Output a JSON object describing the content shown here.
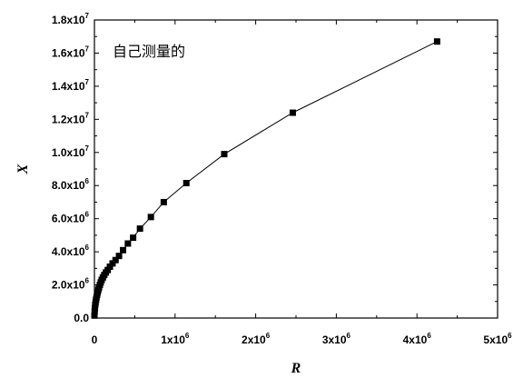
{
  "chart_data": {
    "type": "line",
    "title": "",
    "annotation": "自己测量的",
    "xlabel": "R",
    "ylabel": "X",
    "xlim": [
      0,
      5000000
    ],
    "ylim": [
      0,
      18000000
    ],
    "x_ticks": [
      {
        "value": 0,
        "label": "0",
        "exp": ""
      },
      {
        "value": 1000000,
        "label": "1x10",
        "exp": "6"
      },
      {
        "value": 2000000,
        "label": "2x10",
        "exp": "6"
      },
      {
        "value": 3000000,
        "label": "3x10",
        "exp": "6"
      },
      {
        "value": 4000000,
        "label": "4x10",
        "exp": "6"
      },
      {
        "value": 5000000,
        "label": "5x10",
        "exp": "6"
      }
    ],
    "y_ticks": [
      {
        "value": 0,
        "label": "0.0",
        "exp": ""
      },
      {
        "value": 2000000,
        "label": "2.0x10",
        "exp": "6"
      },
      {
        "value": 4000000,
        "label": "4.0x10",
        "exp": "6"
      },
      {
        "value": 6000000,
        "label": "6.0x10",
        "exp": "6"
      },
      {
        "value": 8000000,
        "label": "8.0x10",
        "exp": "6"
      },
      {
        "value": 10000000,
        "label": "1.0x10",
        "exp": "7"
      },
      {
        "value": 12000000,
        "label": "1.2x10",
        "exp": "7"
      },
      {
        "value": 14000000,
        "label": "1.4x10",
        "exp": "7"
      },
      {
        "value": 16000000,
        "label": "1.6x10",
        "exp": "7"
      },
      {
        "value": 18000000,
        "label": "1.8x10",
        "exp": "7"
      }
    ],
    "grid": false,
    "series": [
      {
        "marker": "square",
        "color": "#000000",
        "x": [
          0,
          3000,
          6000,
          10000,
          15000,
          20000,
          26000,
          33000,
          40000,
          48000,
          57000,
          67000,
          78000,
          90000,
          105000,
          122000,
          142000,
          165000,
          192000,
          225000,
          262000,
          305000,
          355000,
          415000,
          480000,
          565000,
          700000,
          860000,
          1140000,
          1610000,
          2460000,
          4250000
        ],
        "y": [
          150000,
          400000,
          600000,
          800000,
          950000,
          1100000,
          1250000,
          1400000,
          1550000,
          1700000,
          1850000,
          2000000,
          2150000,
          2300000,
          2450000,
          2600000,
          2750000,
          2900000,
          3100000,
          3300000,
          3500000,
          3750000,
          4100000,
          4500000,
          4850000,
          5400000,
          6100000,
          7000000,
          8150000,
          9900000,
          12400000,
          16700000
        ]
      }
    ]
  }
}
